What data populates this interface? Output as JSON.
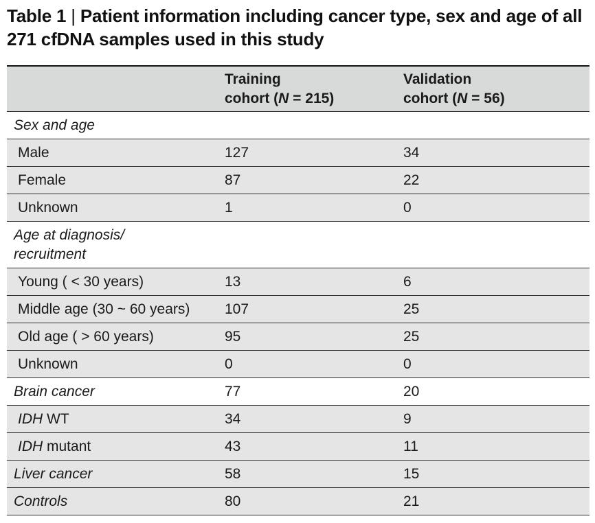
{
  "caption": {
    "label": "Table 1",
    "separator": " | ",
    "text": "Patient information including cancer type, sex and age of all 271 cfDNA samples used in this study"
  },
  "header": {
    "col1": "",
    "col2_line1": "Training",
    "col2_line2_pre": "cohort (",
    "col2_n": "N",
    "col2_line2_post": " = 215)",
    "col3_line1": "Validation",
    "col3_line2_pre": "cohort (",
    "col3_n": "N",
    "col3_line2_post": " = 56)"
  },
  "rows": [
    {
      "label": "Sex and age",
      "training": "",
      "validation": ""
    },
    {
      "label": "Male",
      "training": "127",
      "validation": "34"
    },
    {
      "label": "Female",
      "training": "87",
      "validation": "22"
    },
    {
      "label": "Unknown",
      "training": "1",
      "validation": "0"
    },
    {
      "label_line1": "Age at diagnosis/",
      "label_line2": "recruitment",
      "training": "",
      "validation": ""
    },
    {
      "label": "Young ( < 30 years)",
      "training": "13",
      "validation": "6"
    },
    {
      "label": "Middle age (30 ~ 60 years)",
      "training": "107",
      "validation": "25"
    },
    {
      "label": "Old age ( > 60 years)",
      "training": "95",
      "validation": "25"
    },
    {
      "label": "Unknown",
      "training": "0",
      "validation": "0"
    },
    {
      "label": "Brain cancer",
      "training": "77",
      "validation": "20"
    },
    {
      "label_italic": "IDH",
      "label_rest": " WT",
      "training": "34",
      "validation": "9"
    },
    {
      "label_italic": "IDH",
      "label_rest": " mutant",
      "training": "43",
      "validation": "11"
    },
    {
      "label": "Liver cancer",
      "training": "58",
      "validation": "15"
    },
    {
      "label": "Controls",
      "training": "80",
      "validation": "21"
    }
  ],
  "colors": {
    "header_bg": "#d8dad9",
    "shaded_row_bg": "#e4e5e4",
    "rule": "#2b2b2b"
  }
}
